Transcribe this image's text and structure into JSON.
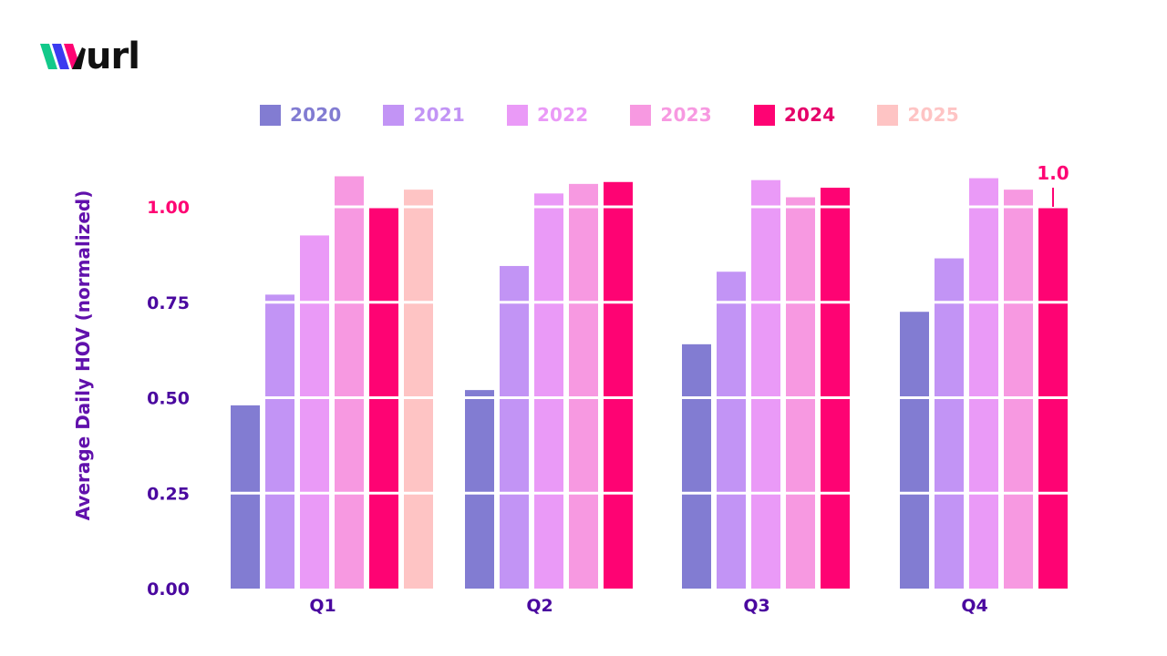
{
  "logo": {
    "text": "url",
    "icon": "w-logo-mark"
  },
  "colors": {
    "2020": "#827cd2",
    "2021": "#c294f5",
    "2022": "#ea9af7",
    "2023": "#f799e1",
    "2024": "#fe0373",
    "2025": "#fec4c4",
    "axis_label": "#6111ac",
    "tick_label": "#4a089f",
    "highlight": "#fe0373"
  },
  "legend": [
    {
      "label": "2020",
      "color": "#827cd2",
      "text_color": "#827cd2"
    },
    {
      "label": "2021",
      "color": "#c294f5",
      "text_color": "#c294f5"
    },
    {
      "label": "2022",
      "color": "#ea9af7",
      "text_color": "#ea9af7"
    },
    {
      "label": "2023",
      "color": "#f799e1",
      "text_color": "#f799e1"
    },
    {
      "label": "2024",
      "color": "#fe0373",
      "text_color": "#e5006a"
    },
    {
      "label": "2025",
      "color": "#fec4c4",
      "text_color": "#fec4c4"
    }
  ],
  "chart_data": {
    "type": "bar",
    "categories": [
      "Q1",
      "Q2",
      "Q3",
      "Q4"
    ],
    "series": [
      {
        "name": "2020",
        "values": [
          0.48,
          0.52,
          0.64,
          0.725
        ]
      },
      {
        "name": "2021",
        "values": [
          0.77,
          0.845,
          0.83,
          0.865
        ]
      },
      {
        "name": "2022",
        "values": [
          0.925,
          1.035,
          1.07,
          1.075
        ]
      },
      {
        "name": "2023",
        "values": [
          1.08,
          1.06,
          1.025,
          1.045
        ]
      },
      {
        "name": "2024",
        "values": [
          1.0,
          1.065,
          1.05,
          1.0
        ]
      },
      {
        "name": "2025",
        "values": [
          1.045,
          null,
          null,
          null
        ]
      }
    ],
    "ylabel": "Average Daily HOV (normalized)",
    "xlabel": "",
    "yticks": [
      {
        "value": 0,
        "label": "0.00"
      },
      {
        "value": 0.25,
        "label": "0.25"
      },
      {
        "value": 0.5,
        "label": "0.50"
      },
      {
        "value": 0.75,
        "label": "0.75"
      },
      {
        "value": 1.0,
        "label": "1.00"
      }
    ],
    "ylim": [
      0,
      1.2
    ],
    "grid": true,
    "legend_position": "top",
    "annotation": {
      "text": "1.0",
      "category": "Q4",
      "series": "2024",
      "value": 1.0
    }
  }
}
